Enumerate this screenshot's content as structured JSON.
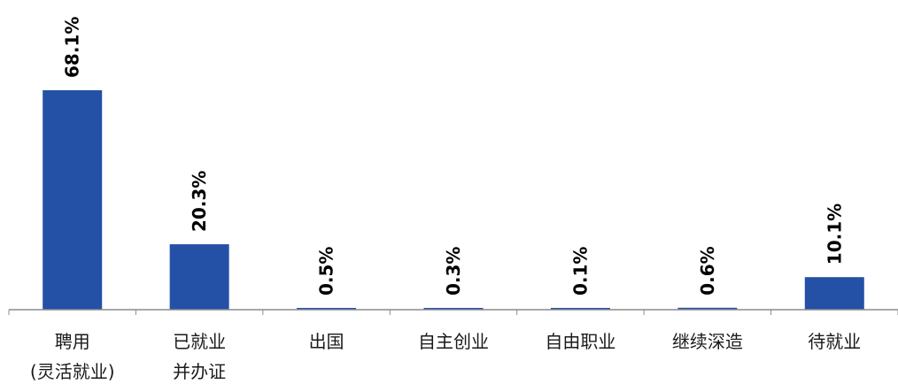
{
  "chart_data": {
    "type": "bar",
    "title": "",
    "xlabel": "",
    "ylabel": "",
    "categories": [
      [
        "聘用",
        "(灵活就业)"
      ],
      [
        "已就业",
        "并办证"
      ],
      [
        "出国"
      ],
      [
        "自主创业"
      ],
      [
        "自由职业"
      ],
      [
        "继续深造"
      ],
      [
        "待就业"
      ]
    ],
    "values": [
      68.1,
      20.3,
      0.5,
      0.3,
      0.1,
      0.6,
      10.1
    ],
    "value_labels": [
      "68.1%",
      "20.3%",
      "0.5%",
      "0.3%",
      "0.1%",
      "0.6%",
      "10.1%"
    ],
    "unit": "%",
    "ylim": [
      0,
      68.1
    ],
    "grid": false,
    "legend": "none",
    "bar_color": "#2450a6",
    "axis_color": "#8c8c8c"
  }
}
